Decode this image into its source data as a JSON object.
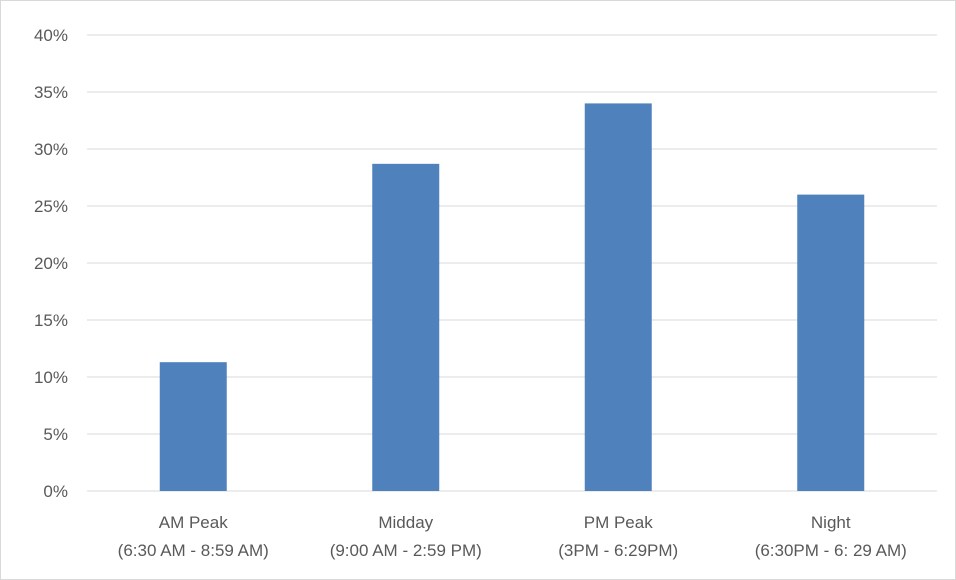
{
  "chart_data": {
    "type": "bar",
    "title": "",
    "xlabel": "",
    "ylabel": "",
    "categories": [
      {
        "line1": "AM Peak",
        "line2": "(6:30 AM - 8:59 AM)"
      },
      {
        "line1": "Midday",
        "line2": "(9:00 AM - 2:59 PM)"
      },
      {
        "line1": "PM Peak",
        "line2": "(3PM - 6:29PM)"
      },
      {
        "line1": "Night",
        "line2": "(6:30PM - 6: 29 AM)"
      }
    ],
    "values": [
      11.3,
      28.7,
      34.0,
      26.0
    ],
    "ylim": [
      0,
      40
    ],
    "yticks": [
      0,
      5,
      10,
      15,
      20,
      25,
      30,
      35,
      40
    ],
    "ytick_labels": [
      "0%",
      "5%",
      "10%",
      "15%",
      "20%",
      "25%",
      "30%",
      "35%",
      "40%"
    ],
    "grid": true,
    "bar_color": "#4f81bd",
    "grid_color": "#d9d9d9",
    "text_color": "#595959"
  }
}
